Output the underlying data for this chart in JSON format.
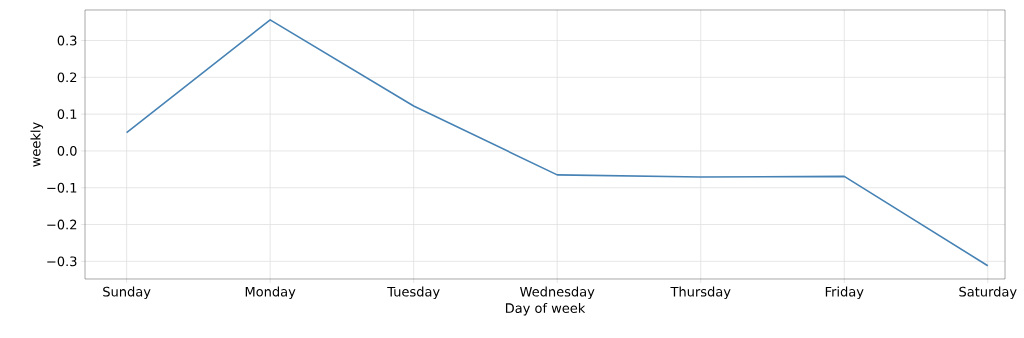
{
  "chart_data": {
    "type": "line",
    "xlabel": "Day of week",
    "ylabel": "weekly",
    "categories": [
      "Sunday",
      "Monday",
      "Tuesday",
      "Wednesday",
      "Thursday",
      "Friday",
      "Saturday"
    ],
    "series": [
      {
        "color": "#4682b4",
        "values": [
          0.05,
          0.356,
          0.122,
          -0.065,
          -0.071,
          -0.069,
          -0.312
        ]
      }
    ],
    "ylim": [
      -0.348,
      0.383
    ],
    "yticks": [
      {
        "value": -0.3,
        "label": "−0.3"
      },
      {
        "value": -0.2,
        "label": "−0.2"
      },
      {
        "value": -0.1,
        "label": "−0.1"
      },
      {
        "value": 0,
        "label": "0.0"
      },
      {
        "value": 0.1,
        "label": "0.1"
      },
      {
        "value": 0.2,
        "label": "0.2"
      },
      {
        "value": 0.3,
        "label": "0.3"
      }
    ],
    "grid": true
  }
}
